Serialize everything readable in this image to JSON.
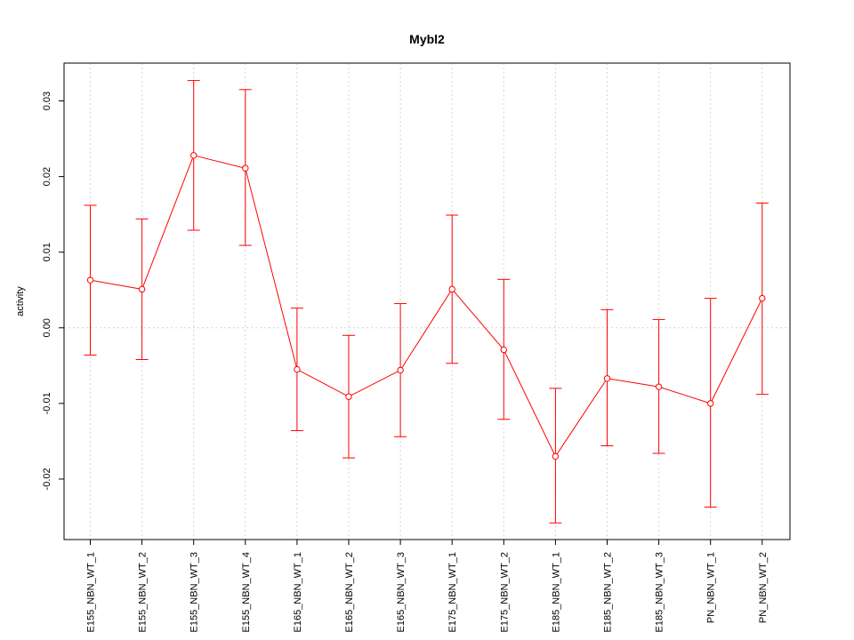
{
  "chart_data": {
    "type": "line",
    "title": "Mybl2",
    "xlabel": "",
    "ylabel": "activity",
    "categories": [
      "E155_NBN_WT_1",
      "E155_NBN_WT_2",
      "E155_NBN_WT_3",
      "E155_NBN_WT_4",
      "E165_NBN_WT_1",
      "E165_NBN_WT_2",
      "E165_NBN_WT_3",
      "E175_NBN_WT_1",
      "E175_NBN_WT_2",
      "E185_NBN_WT_1",
      "E185_NBN_WT_2",
      "E185_NBN_WT_3",
      "PN_NBN_WT_1",
      "PN_NBN_WT_2"
    ],
    "series": [
      {
        "values": [
          0.0063,
          0.0051,
          0.0228,
          0.0211,
          -0.0055,
          -0.0091,
          -0.0056,
          0.0051,
          -0.0029,
          -0.017,
          -0.0067,
          -0.0078,
          -0.01,
          0.0039
        ],
        "lower": [
          -0.0036,
          -0.0042,
          0.0129,
          0.0109,
          -0.0136,
          -0.0172,
          -0.0144,
          -0.0047,
          -0.0121,
          -0.0258,
          -0.0156,
          -0.0166,
          -0.0237,
          -0.0088
        ],
        "upper": [
          0.0162,
          0.0144,
          0.0327,
          0.0315,
          0.0026,
          -0.001,
          0.0032,
          0.0149,
          0.0064,
          -0.008,
          0.0024,
          0.0011,
          0.0039,
          0.0165
        ]
      }
    ],
    "ylim": [
      -0.028,
      0.035
    ],
    "yticks": [
      -0.02,
      -0.01,
      0.0,
      0.01,
      0.02,
      0.03
    ],
    "ytick_labels": [
      "-0.02",
      "-0.01",
      "0.00",
      "0.01",
      "0.02",
      "0.03"
    ],
    "grid": true,
    "line_color": "#ff0000",
    "grid_color": "#d3d3d3"
  }
}
